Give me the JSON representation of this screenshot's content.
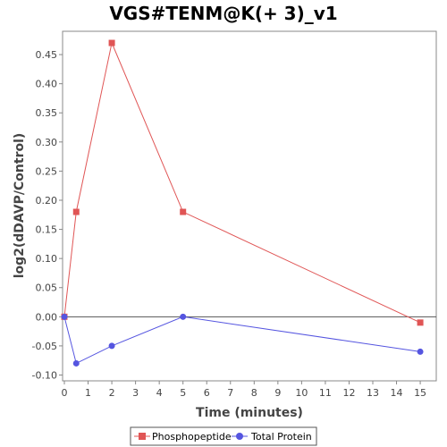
{
  "chart_data": {
    "type": "line",
    "title": "VGS#TENM@K(+ 3)_v1",
    "xlabel": "Time (minutes)",
    "ylabel": "log2(dDAVP/Control)",
    "xlim": [
      0,
      15.6
    ],
    "ylim": [
      -0.11,
      0.49
    ],
    "xticks": [
      0,
      1,
      2,
      3,
      4,
      5,
      6,
      7,
      8,
      9,
      10,
      11,
      12,
      13,
      14,
      15
    ],
    "yticks": [
      -0.1,
      -0.05,
      0.0,
      0.05,
      0.1,
      0.15,
      0.2,
      0.25,
      0.3,
      0.35,
      0.4,
      0.45
    ],
    "ytick_labels": [
      "-0.10",
      "-0.05",
      "0.00",
      "0.05",
      "0.10",
      "0.15",
      "0.20",
      "0.25",
      "0.30",
      "0.35",
      "0.40",
      "0.45"
    ],
    "zero_line": true,
    "grid": false,
    "legend_position": "bottom",
    "series": [
      {
        "name": "Phosphopeptide",
        "color": "#e05555",
        "marker": "square",
        "x": [
          0,
          0.5,
          2,
          5,
          15
        ],
        "y": [
          0.0,
          0.18,
          0.47,
          0.18,
          -0.01
        ]
      },
      {
        "name": "Total Protein",
        "color": "#5555e0",
        "marker": "circle",
        "x": [
          0,
          0.5,
          2,
          5,
          15
        ],
        "y": [
          0.0,
          -0.08,
          -0.05,
          0.0,
          -0.06
        ]
      }
    ]
  }
}
